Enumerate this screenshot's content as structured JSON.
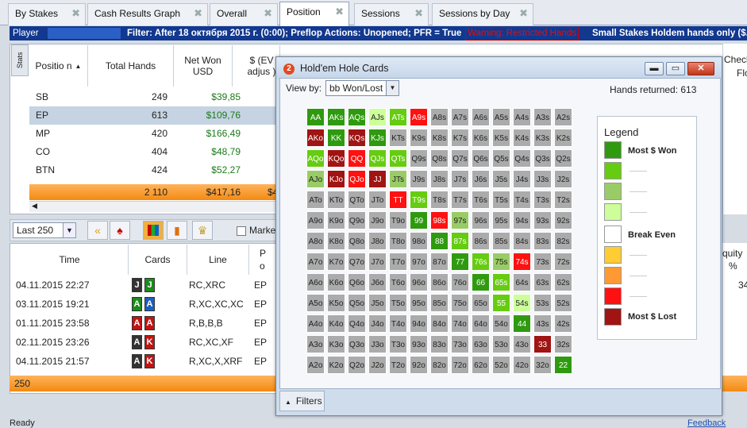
{
  "tabs": [
    {
      "label": "By Stakes"
    },
    {
      "label": "Cash Results Graph"
    },
    {
      "label": "Overall"
    },
    {
      "label": "Position"
    },
    {
      "label": "Sessions"
    },
    {
      "label": "Sessions by Day"
    }
  ],
  "filterbar": {
    "player_label": "Player",
    "filter_text": "Filter: After 18 октября 2015 г. (0:00); Preflop Actions: Unopened; PFR = True",
    "warning": "Warning: Restricted Hands",
    "stakes": "Small Stakes Holdem hands only ($.50 NL"
  },
  "stats_tab": "Stats",
  "position_table": {
    "headers": [
      "Positio n",
      "Total Hands",
      "Net Won USD",
      "$ (EV adjus )"
    ],
    "rows": [
      {
        "pos": "SB",
        "hands": "249",
        "won": "$39,85"
      },
      {
        "pos": "EP",
        "hands": "613",
        "won": "$109,76"
      },
      {
        "pos": "MP",
        "hands": "420",
        "won": "$166,49"
      },
      {
        "pos": "CO",
        "hands": "404",
        "won": "$48,79"
      },
      {
        "pos": "BTN",
        "hands": "424",
        "won": "$52,27"
      }
    ],
    "total": {
      "hands": "2 110",
      "won": "$417,16",
      "partial": "$4"
    }
  },
  "toolbar": {
    "limit": "Last 250",
    "marked_label": "Marke"
  },
  "hands_table": {
    "headers": [
      "Time",
      "Cards",
      "Line",
      "P o"
    ],
    "rows": [
      {
        "time": "04.11.2015 22:27",
        "c1": "J",
        "c2": "J",
        "line": "RC,XRC",
        "pos": "EP"
      },
      {
        "time": "03.11.2015 19:21",
        "c1": "A",
        "c2": "A",
        "line": "R,XC,XC,XC",
        "pos": "EP"
      },
      {
        "time": "01.11.2015 23:58",
        "c1": "A",
        "c2": "A",
        "line": "R,B,B,B",
        "pos": "EP"
      },
      {
        "time": "02.11.2015 23:26",
        "c1": "A",
        "c2": "K",
        "line": "RC,XC,XF",
        "pos": "EP"
      },
      {
        "time": "04.11.2015 21:57",
        "c1": "A",
        "c2": "K",
        "line": "R,XC,X,XRF",
        "pos": "EP"
      }
    ],
    "footer": "250"
  },
  "right_partial": {
    "check": "Checl",
    "flop": "Flo",
    "equity": "quity",
    "pct": "%",
    "val": "34",
    "feedback": "Feedback"
  },
  "status": "Ready",
  "dialog": {
    "title": "Hold'em Hole Cards",
    "view_by_label": "View by:",
    "view_by_value": "bb Won/Lost",
    "hands_returned": "Hands returned:  613",
    "filters_label": "Filters",
    "legend": {
      "title": "Legend",
      "most_won": "Most $ Won",
      "break_even": "Break Even",
      "most_lost": "Most $ Lost",
      "colors": [
        "#2f9a10",
        "#66cc11",
        "#99cc66",
        "#ccff99",
        "#ffffff",
        "#ffcc33",
        "#ff9933",
        "#ff1111",
        "#a01414"
      ]
    },
    "ranks": [
      "A",
      "K",
      "Q",
      "J",
      "T",
      "9",
      "8",
      "7",
      "6",
      "5",
      "4",
      "3",
      "2"
    ],
    "colors": {
      "AA": "g3",
      "AKs": "g3",
      "AQs": "g3",
      "AJs": "g0",
      "ATs": "g2",
      "A9s": "r2",
      "AKo": "r3",
      "KK": "g3",
      "KQs": "r3",
      "KJs": "g3",
      "AQo": "g2",
      "KQo": "r3",
      "QQ": "r2",
      "QJs": "g2",
      "QTs": "g2",
      "AJo": "g1",
      "KJo": "r3",
      "QJo": "r2",
      "JJ": "r3",
      "JTs": "g1",
      "TT": "r2",
      "T9s": "g2",
      "99": "g3",
      "98s": "r2",
      "97s": "g1",
      "88": "g3",
      "87s": "g2",
      "77": "g3",
      "76s": "g2",
      "75s": "g1",
      "74s": "r2",
      "66": "g3",
      "65s": "g2",
      "55": "g2",
      "54s": "g0",
      "44": "g3",
      "33": "r3",
      "22": "g3"
    }
  }
}
